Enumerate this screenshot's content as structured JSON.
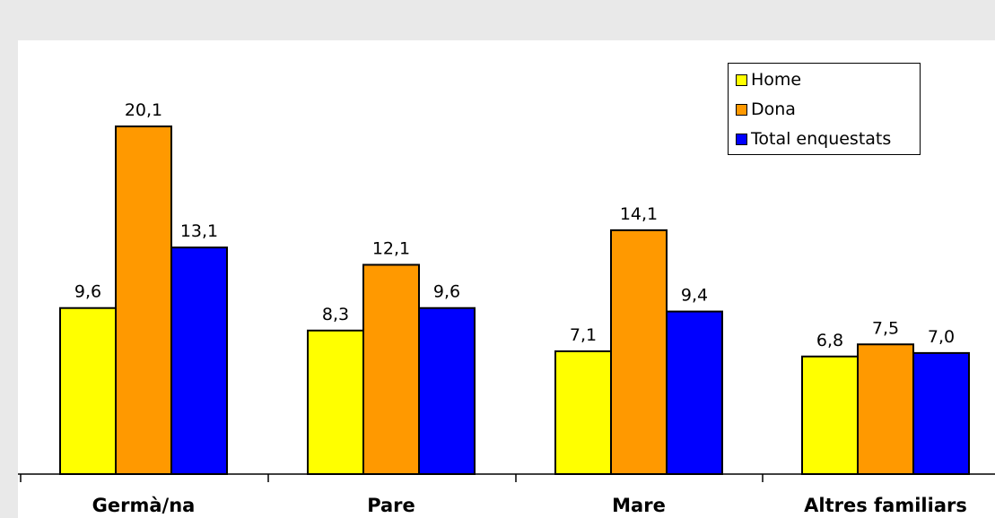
{
  "chart_data": {
    "type": "bar",
    "title": "",
    "xlabel": "",
    "ylabel": "",
    "categories": [
      "Germà/na",
      "Pare",
      "Mare",
      "Altres familiars"
    ],
    "series": [
      {
        "name": "Home",
        "color": "#ffff00",
        "values": [
          9.6,
          8.3,
          7.1,
          6.8
        ],
        "labels": [
          "9,6",
          "8,3",
          "7,1",
          "6,8"
        ]
      },
      {
        "name": "Dona",
        "color": "#ff9900",
        "values": [
          20.1,
          12.1,
          14.1,
          7.5
        ],
        "labels": [
          "20,1",
          "12,1",
          "14,1",
          "7,5"
        ]
      },
      {
        "name": "Total enquestats",
        "color": "#0000ff",
        "values": [
          13.1,
          9.6,
          9.4,
          7.0
        ],
        "labels": [
          "13,1",
          "9,6",
          "9,4",
          "7,0"
        ]
      }
    ],
    "ylim": [
      0,
      22
    ],
    "grid": false,
    "legend_position": "top-right"
  }
}
